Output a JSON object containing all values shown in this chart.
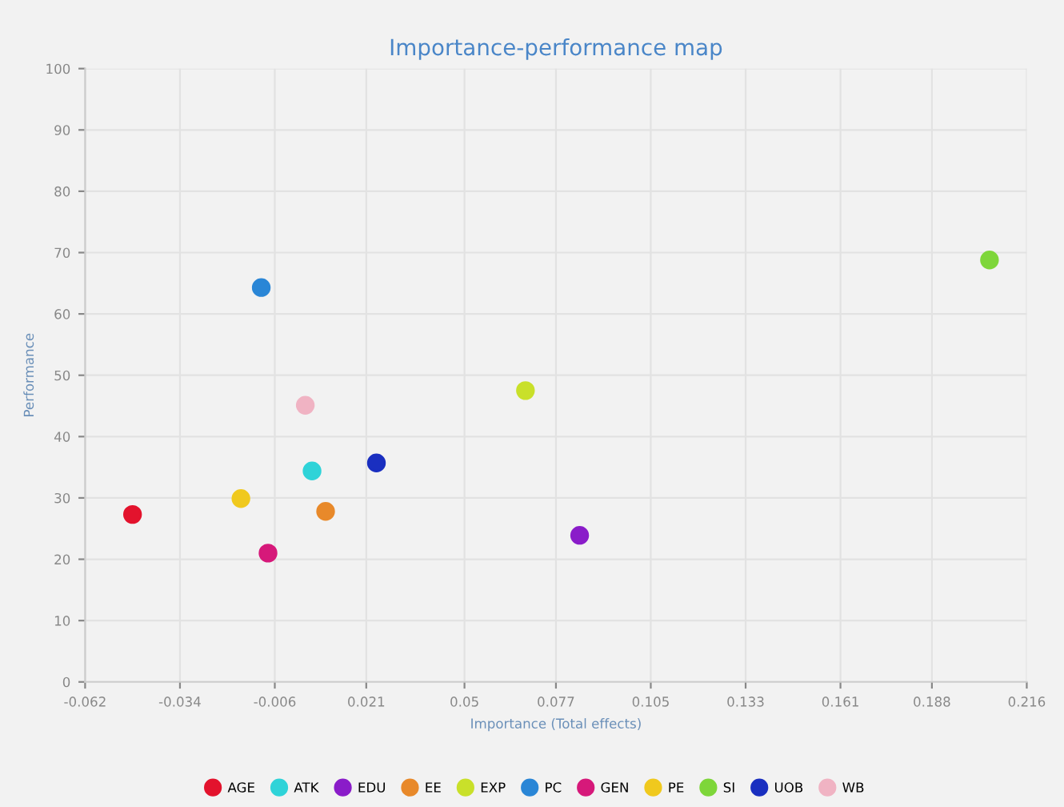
{
  "chart_data": {
    "type": "scatter",
    "title": "Importance-performance map",
    "xlabel": "Importance (Total effects)",
    "ylabel": "Performance",
    "xlim": [
      -0.062,
      0.216
    ],
    "xticks": [
      -0.062,
      -0.034,
      -0.006,
      0.021,
      0.05,
      0.077,
      0.105,
      0.133,
      0.161,
      0.188,
      0.216
    ],
    "ylim": [
      0,
      100
    ],
    "yticks": [
      0,
      10,
      20,
      30,
      40,
      50,
      60,
      70,
      80,
      90,
      100
    ],
    "grid": true,
    "legend": "bottom",
    "marker": "circle",
    "series": [
      {
        "name": "AGE",
        "color": "#e3132d",
        "x": [
          -0.048
        ],
        "values": [
          27.3
        ]
      },
      {
        "name": "ATK",
        "color": "#2fd3d8",
        "x": [
          0.005
        ],
        "values": [
          34.4
        ]
      },
      {
        "name": "EDU",
        "color": "#8a1cc9",
        "x": [
          0.084
        ],
        "values": [
          23.9
        ]
      },
      {
        "name": "EE",
        "color": "#e8892a",
        "x": [
          0.009
        ],
        "values": [
          27.8
        ]
      },
      {
        "name": "EXP",
        "color": "#c9e02a",
        "x": [
          0.068
        ],
        "values": [
          47.5
        ]
      },
      {
        "name": "PC",
        "color": "#2a86d6",
        "x": [
          -0.01
        ],
        "values": [
          64.3
        ]
      },
      {
        "name": "GEN",
        "color": "#d6197a",
        "x": [
          -0.008
        ],
        "values": [
          21.0
        ]
      },
      {
        "name": "PE",
        "color": "#f0c91e",
        "x": [
          -0.016
        ],
        "values": [
          29.9
        ]
      },
      {
        "name": "SI",
        "color": "#7ed63a",
        "x": [
          0.205
        ],
        "values": [
          68.8
        ]
      },
      {
        "name": "UOB",
        "color": "#1a2fc0",
        "x": [
          0.024
        ],
        "values": [
          35.7
        ]
      },
      {
        "name": "WB",
        "color": "#f0b3c3",
        "x": [
          0.003
        ],
        "values": [
          45.1
        ]
      }
    ]
  }
}
